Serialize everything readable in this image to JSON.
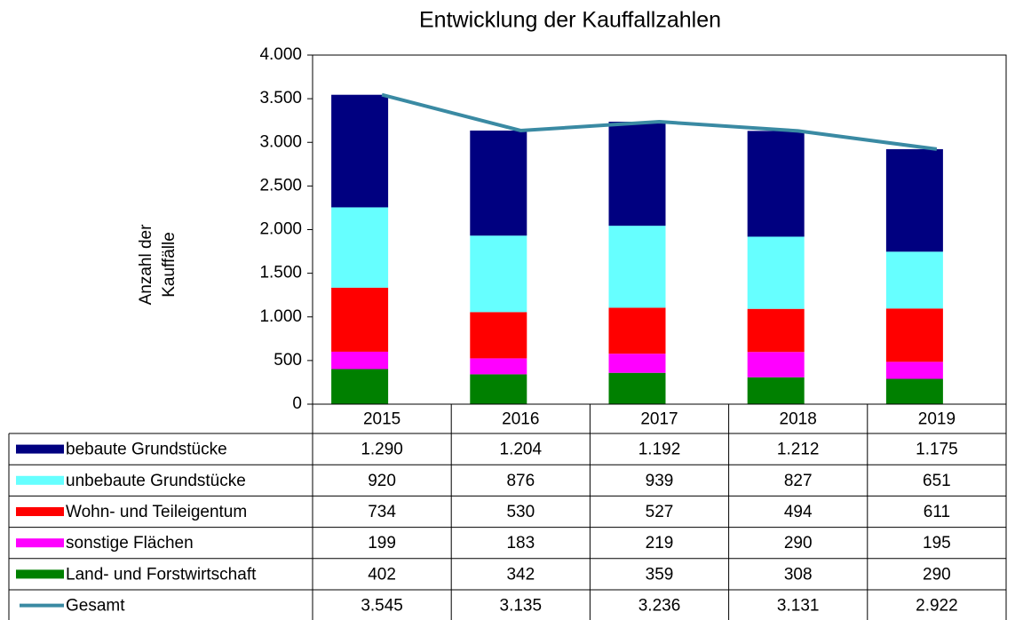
{
  "chart_data": {
    "type": "bar",
    "stacked": true,
    "title": "Entwicklung der Kauffallzahlen",
    "y_label": [
      "Anzahl der",
      "Kauffälle"
    ],
    "categories": [
      "2015",
      "2016",
      "2017",
      "2018",
      "2019"
    ],
    "series": [
      {
        "name": "bebaute Grundstücke",
        "color": "#000080",
        "values": [
          1290,
          1204,
          1192,
          1212,
          1175
        ],
        "value_labels": [
          "1.290",
          "1.204",
          "1.192",
          "1.212",
          "1.175"
        ]
      },
      {
        "name": "unbebaute Grundstücke",
        "color": "#66ffff",
        "values": [
          920,
          876,
          939,
          827,
          651
        ]
      },
      {
        "name": "Wohn- und Teileigentum",
        "color": "#ff0000",
        "values": [
          734,
          530,
          527,
          494,
          611
        ]
      },
      {
        "name": "sonstige Flächen",
        "color": "#ff00ff",
        "values": [
          199,
          183,
          219,
          290,
          195
        ]
      },
      {
        "name": "Land- und Forstwirtschaft",
        "color": "#008000",
        "values": [
          402,
          342,
          359,
          308,
          290
        ]
      },
      {
        "name": "Gesamt",
        "type": "line",
        "color": "#3a8aa3",
        "values": [
          3545,
          3135,
          3236,
          3131,
          2922
        ],
        "value_labels": [
          "3.545",
          "3.135",
          "3.236",
          "3.131",
          "2.922"
        ]
      }
    ],
    "ylim": [
      0,
      4000
    ],
    "yticks": [
      0,
      500,
      {
        "value": 1000,
        "label": "1.000"
      },
      {
        "value": 1500,
        "label": "1.500"
      },
      {
        "value": 2000,
        "label": "2.000"
      },
      {
        "value": 2500,
        "label": "2.500"
      },
      {
        "value": 3000,
        "label": "3.000"
      },
      {
        "value": 3500,
        "label": "3.500"
      },
      {
        "value": 4000,
        "label": "4.000"
      }
    ],
    "grid": false,
    "data_table": true
  }
}
